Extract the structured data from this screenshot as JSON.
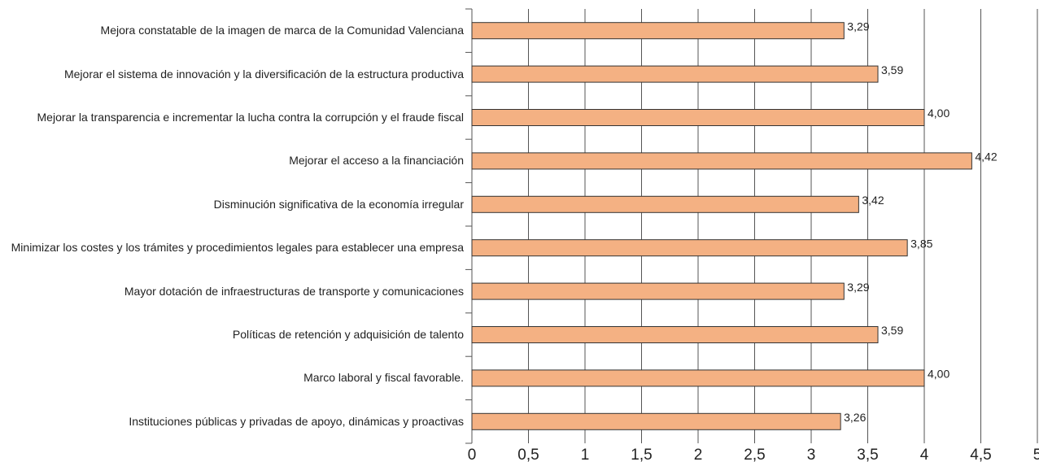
{
  "chart_data": {
    "type": "bar",
    "orientation": "horizontal",
    "categories": [
      "Mejora constatable de la imagen de marca de la Comunidad Valenciana",
      "Mejorar el sistema de innovación y la diversificación de la estructura productiva",
      "Mejorar la transparencia e incrementar la lucha contra la corrupción y el fraude fiscal",
      "Mejorar el acceso a la financiación",
      "Disminución significativa de la economía irregular",
      "Minimizar los costes y los trámites y procedimientos legales para establecer una empresa",
      "Mayor dotación de infraestructuras de transporte y comunicaciones",
      "Políticas de retención y adquisición de talento",
      "Marco laboral y fiscal favorable.",
      "Instituciones públicas y privadas de apoyo, dinámicas y proactivas"
    ],
    "values": [
      3.29,
      3.59,
      4.0,
      4.42,
      3.42,
      3.85,
      3.29,
      3.59,
      4.0,
      3.26
    ],
    "value_labels": [
      "3,29",
      "3,59",
      "4,00",
      "4,42",
      "3,42",
      "3,85",
      "3,29",
      "3,59",
      "4,00",
      "3,26"
    ],
    "color": "#f4b183",
    "xlim": [
      0,
      5
    ],
    "xticks": [
      0,
      {
        "value": 0.5,
        "label": "0,5"
      },
      1,
      {
        "value": 1.5,
        "label": "1,5"
      },
      2,
      {
        "value": 2.5,
        "label": "2,5"
      },
      3,
      {
        "value": 3.5,
        "label": "3,5"
      },
      4,
      {
        "value": 4.5,
        "label": "4,5"
      },
      5
    ],
    "grid": true
  }
}
